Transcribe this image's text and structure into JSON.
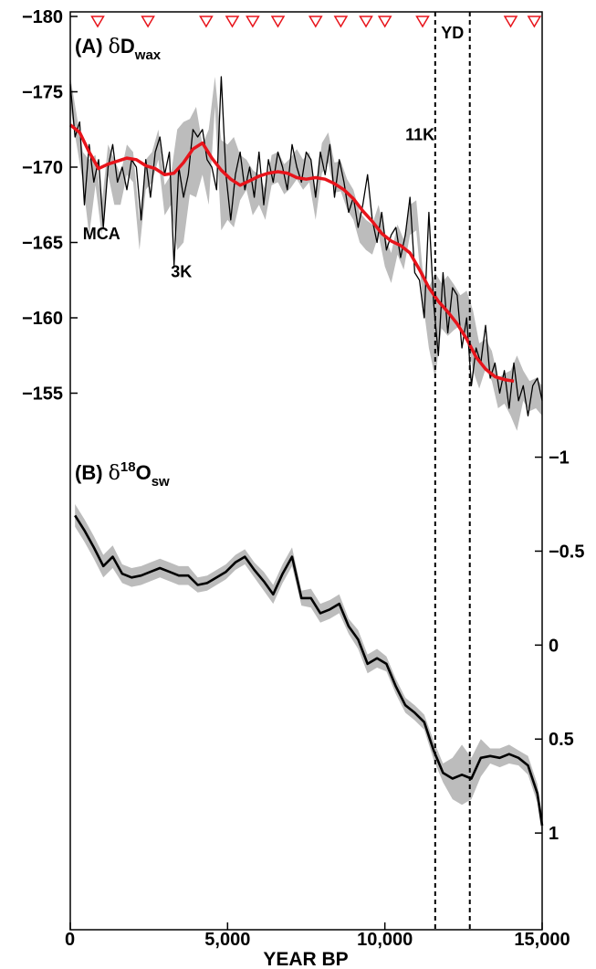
{
  "chart_data": {
    "type": "line",
    "xlabel": "YEAR BP",
    "xlim": [
      0,
      15000
    ],
    "x_ticks": [
      0,
      5000,
      10000,
      15000
    ],
    "x_tick_labels": [
      "0",
      "5,000",
      "10,000",
      "15,000"
    ],
    "grid": false,
    "marker_color": "#e8141b",
    "band_color": "#bcbcbc",
    "panels": [
      {
        "label_prefix": "(A) ",
        "symbol": "δ",
        "label_main": "D",
        "label_sub": "wax",
        "label_sup": "",
        "axis": "left",
        "ylim": [
          -180,
          -152
        ],
        "y_inverted": true,
        "y_ticks": [
          -180,
          -175,
          -170,
          -165,
          -160,
          -155
        ],
        "y_tick_labels": [
          "−180",
          "−175",
          "−170",
          "−165",
          "−160",
          "−155"
        ],
        "series": [
          {
            "kind": "band",
            "x": [
              0,
              200,
              400,
              600,
              800,
              1000,
              1200,
              1400,
              1600,
              1800,
              2000,
              2200,
              2400,
              2600,
              2800,
              3000,
              3200,
              3400,
              3600,
              3800,
              4000,
              4200,
              4400,
              4600,
              4800,
              5000,
              5200,
              5400,
              5600,
              5800,
              6000,
              6200,
              6400,
              6600,
              6800,
              7000,
              7200,
              7400,
              7600,
              7800,
              8000,
              8200,
              8400,
              8600,
              8800,
              9000,
              9200,
              9400,
              9600,
              9800,
              10000,
              10200,
              10400,
              10600,
              10800,
              11000,
              11200,
              11400,
              11600,
              11800,
              12000,
              12200,
              12400,
              12600,
              12800,
              13000,
              13200,
              13400,
              13600,
              13800,
              14000,
              14200,
              14400,
              14600,
              14800,
              15000
            ],
            "lower": [
              -176.0,
              -173.5,
              -171.0,
              -170.5,
              -170.8,
              -167.5,
              -171.5,
              -170.5,
              -169.5,
              -171.5,
              -171.0,
              -166.5,
              -170.5,
              -171.0,
              -172.5,
              -168.8,
              -169.5,
              -172.5,
              -173.0,
              -173.2,
              -174.0,
              -171.5,
              -172.5,
              -176.0,
              -171.8,
              -171.5,
              -172.0,
              -170.8,
              -170.5,
              -169.8,
              -169.5,
              -168.5,
              -170.8,
              -171.0,
              -170.2,
              -170.6,
              -171.2,
              -170.5,
              -171.0,
              -168.5,
              -171.6,
              -172.3,
              -170.3,
              -170.4,
              -169.2,
              -168.5,
              -167.0,
              -166.5,
              -166.2,
              -167.5,
              -165.4,
              -164.3,
              -166.2,
              -165.2,
              -167.5,
              -167.8,
              -163.2,
              -162.0,
              -163.0,
              -162.3,
              -162.8,
              -162.2,
              -161.5,
              -161.8,
              -160.5,
              -158.3,
              -158.6,
              -157.8,
              -156.0,
              -156.3,
              -156.5,
              -157.5,
              -156.5,
              -155.8,
              -156.0,
              -155.5
            ],
            "upper": [
              -174.0,
              -171.5,
              -169.0,
              -165.5,
              -168.8,
              -165.5,
              -169.5,
              -167.5,
              -167.5,
              -169.5,
              -169.0,
              -164.5,
              -168.5,
              -169.0,
              -170.5,
              -166.8,
              -167.5,
              -164.5,
              -165.0,
              -168.2,
              -168.0,
              -169.5,
              -167.5,
              -174.0,
              -165.8,
              -166.5,
              -166.0,
              -167.8,
              -168.5,
              -166.8,
              -167.5,
              -166.5,
              -168.8,
              -169.0,
              -168.2,
              -168.6,
              -169.2,
              -168.5,
              -169.0,
              -166.5,
              -169.6,
              -170.3,
              -168.3,
              -168.4,
              -167.2,
              -166.5,
              -165.0,
              -164.5,
              -164.2,
              -165.5,
              -163.4,
              -162.3,
              -164.2,
              -163.2,
              -165.5,
              -165.8,
              -161.2,
              -158.0,
              -156.0,
              -159.3,
              -158.8,
              -159.2,
              -159.5,
              -158.8,
              -156.5,
              -155.3,
              -156.6,
              -155.8,
              -154.0,
              -154.3,
              -153.5,
              -152.5,
              -154.5,
              -153.8,
              -154.0,
              -153.5
            ]
          },
          {
            "kind": "line",
            "name": "",
            "color": "#000000",
            "x": [
              0,
              150,
              300,
              450,
              600,
              750,
              900,
              1050,
              1200,
              1350,
              1500,
              1650,
              1800,
              1950,
              2100,
              2250,
              2400,
              2550,
              2700,
              2850,
              3000,
              3150,
              3300,
              3450,
              3600,
              3750,
              3900,
              4050,
              4200,
              4350,
              4500,
              4650,
              4800,
              4950,
              5100,
              5250,
              5400,
              5550,
              5700,
              5850,
              6000,
              6150,
              6300,
              6450,
              6600,
              6750,
              6900,
              7050,
              7200,
              7350,
              7500,
              7650,
              7800,
              7950,
              8100,
              8250,
              8400,
              8550,
              8700,
              8850,
              9000,
              9150,
              9300,
              9450,
              9600,
              9750,
              9900,
              10050,
              10200,
              10350,
              10500,
              10650,
              10800,
              10950,
              11100,
              11250,
              11400,
              11550,
              11700,
              11850,
              12000,
              12150,
              12300,
              12450,
              12600,
              12750,
              12900,
              13050,
              13200,
              13350,
              13500,
              13650,
              13800,
              13950,
              14100,
              14250,
              14400,
              14550,
              14700,
              14850,
              15000
            ],
            "y": [
              -175.5,
              -172.0,
              -173.0,
              -167.5,
              -171.5,
              -169.0,
              -170.5,
              -166.0,
              -170.0,
              -171.5,
              -169.0,
              -170.0,
              -168.5,
              -170.5,
              -170.0,
              -166.5,
              -170.5,
              -168.0,
              -171.0,
              -172.0,
              -169.5,
              -171.0,
              -163.5,
              -170.0,
              -168.0,
              -169.5,
              -172.5,
              -172.0,
              -172.5,
              -170.5,
              -170.0,
              -168.5,
              -176.0,
              -169.5,
              -166.5,
              -169.5,
              -171.0,
              -168.5,
              -170.0,
              -168.0,
              -171.0,
              -167.5,
              -170.5,
              -169.0,
              -171.0,
              -170.0,
              -168.5,
              -171.5,
              -170.0,
              -169.0,
              -171.0,
              -170.5,
              -168.0,
              -171.0,
              -169.5,
              -171.5,
              -168.0,
              -170.5,
              -169.0,
              -167.0,
              -168.0,
              -166.0,
              -167.5,
              -169.5,
              -166.5,
              -165.0,
              -167.0,
              -164.5,
              -165.5,
              -166.0,
              -164.0,
              -165.5,
              -168.0,
              -163.0,
              -162.5,
              -160.0,
              -167.0,
              -161.0,
              -157.5,
              -163.0,
              -159.0,
              -162.0,
              -161.5,
              -158.0,
              -160.0,
              -155.5,
              -158.0,
              -157.0,
              -159.5,
              -156.0,
              -157.0,
              -155.0,
              -156.5,
              -154.0,
              -157.0,
              -154.5,
              -155.5,
              -153.5,
              -155.5,
              -156.0,
              -154.5
            ]
          },
          {
            "kind": "line",
            "name": "",
            "color": "#e8141b",
            "x": [
              0,
              300,
              600,
              900,
              1200,
              1500,
              1800,
              2100,
              2400,
              2700,
              3000,
              3300,
              3600,
              3900,
              4200,
              4500,
              4800,
              5100,
              5400,
              5700,
              6000,
              6300,
              6600,
              6900,
              7200,
              7500,
              7800,
              8100,
              8400,
              8700,
              9000,
              9300,
              9600,
              9900,
              10200,
              10500,
              10800,
              11100,
              11400,
              11700,
              12000,
              12300,
              12600,
              12900,
              13200,
              13500,
              13800,
              14100
            ],
            "y": [
              -172.8,
              -172.3,
              -171.0,
              -169.9,
              -170.2,
              -170.4,
              -170.6,
              -170.5,
              -170.1,
              -169.9,
              -169.5,
              -169.6,
              -170.3,
              -171.2,
              -171.6,
              -170.6,
              -169.8,
              -169.2,
              -168.8,
              -169.1,
              -169.4,
              -169.6,
              -169.7,
              -169.6,
              -169.3,
              -169.2,
              -169.3,
              -169.2,
              -168.9,
              -168.5,
              -167.9,
              -167.1,
              -166.4,
              -165.6,
              -165.1,
              -164.8,
              -164.3,
              -163.2,
              -162.0,
              -161.1,
              -160.4,
              -159.6,
              -158.6,
              -157.4,
              -156.6,
              -156.1,
              -155.9,
              -155.8
            ]
          }
        ],
        "annotations": [
          {
            "text": "MCA",
            "x": 400,
            "y": -165.2
          },
          {
            "text": "3K",
            "x": 3200,
            "y": -162.7
          },
          {
            "text": "11K",
            "x": 10650,
            "y": -171.8
          }
        ],
        "markers_x": [
          870,
          2470,
          4320,
          5150,
          5800,
          6600,
          7800,
          8600,
          9400,
          10000,
          11200,
          14000,
          14750
        ]
      },
      {
        "label_prefix": "(B) ",
        "symbol": "δ",
        "label_main": "O",
        "label_sub": "sw",
        "label_sup": "18",
        "axis": "right",
        "ylim": [
          -1.1,
          1.15
        ],
        "y_inverted": true,
        "y_ticks": [
          -1,
          -0.5,
          0,
          0.5,
          1
        ],
        "y_tick_labels": [
          "−1",
          "−0.5",
          "0",
          "0.5",
          "1"
        ],
        "series": [
          {
            "kind": "band",
            "x": [
              150,
              450,
              750,
              1050,
              1350,
              1650,
              1950,
              2250,
              2550,
              2850,
              3150,
              3450,
              3750,
              4050,
              4350,
              4650,
              4950,
              5250,
              5550,
              5850,
              6150,
              6450,
              6750,
              7050,
              7350,
              7650,
              7950,
              8250,
              8550,
              8850,
              9150,
              9450,
              9750,
              10050,
              10350,
              10650,
              10950,
              11250,
              11550,
              11850,
              12150,
              12450,
              12750,
              13050,
              13350,
              13650,
              13950,
              14250,
              14550,
              14850,
              15000
            ],
            "lower": [
              -0.75,
              -0.67,
              -0.58,
              -0.48,
              -0.53,
              -0.43,
              -0.41,
              -0.42,
              -0.44,
              -0.46,
              -0.44,
              -0.42,
              -0.42,
              -0.36,
              -0.37,
              -0.4,
              -0.43,
              -0.48,
              -0.51,
              -0.44,
              -0.39,
              -0.32,
              -0.43,
              -0.52,
              -0.29,
              -0.3,
              -0.22,
              -0.24,
              -0.27,
              -0.14,
              -0.08,
              0.05,
              0.02,
              0.06,
              0.18,
              0.28,
              0.32,
              0.37,
              0.51,
              0.63,
              0.6,
              0.53,
              0.6,
              0.5,
              0.55,
              0.55,
              0.53,
              0.56,
              0.59,
              0.74,
              0.91
            ],
            "upper": [
              -0.63,
              -0.55,
              -0.46,
              -0.36,
              -0.41,
              -0.33,
              -0.31,
              -0.32,
              -0.34,
              -0.36,
              -0.34,
              -0.32,
              -0.32,
              -0.28,
              -0.29,
              -0.32,
              -0.35,
              -0.4,
              -0.43,
              -0.36,
              -0.29,
              -0.22,
              -0.33,
              -0.42,
              -0.21,
              -0.2,
              -0.12,
              -0.14,
              -0.17,
              -0.06,
              0.02,
              0.15,
              0.12,
              0.14,
              0.26,
              0.36,
              0.4,
              0.45,
              0.61,
              0.73,
              0.82,
              0.85,
              0.82,
              0.7,
              0.63,
              0.65,
              0.63,
              0.64,
              0.69,
              0.84,
              1.01
            ]
          },
          {
            "kind": "line",
            "name": "",
            "color": "#000000",
            "x": [
              150,
              450,
              750,
              1050,
              1350,
              1650,
              1950,
              2250,
              2550,
              2850,
              3150,
              3450,
              3750,
              4050,
              4350,
              4650,
              4950,
              5250,
              5550,
              5850,
              6150,
              6450,
              6750,
              7050,
              7350,
              7650,
              7950,
              8250,
              8550,
              8850,
              9150,
              9450,
              9750,
              10050,
              10350,
              10650,
              10950,
              11250,
              11550,
              11850,
              12150,
              12450,
              12750,
              13050,
              13350,
              13650,
              13950,
              14250,
              14550,
              14850,
              15000
            ],
            "y": [
              -0.69,
              -0.61,
              -0.52,
              -0.42,
              -0.47,
              -0.38,
              -0.36,
              -0.37,
              -0.39,
              -0.41,
              -0.39,
              -0.37,
              -0.37,
              -0.32,
              -0.33,
              -0.36,
              -0.39,
              -0.44,
              -0.47,
              -0.4,
              -0.34,
              -0.27,
              -0.38,
              -0.47,
              -0.25,
              -0.25,
              -0.17,
              -0.19,
              -0.22,
              -0.1,
              -0.03,
              0.1,
              0.07,
              0.1,
              0.22,
              0.32,
              0.36,
              0.41,
              0.56,
              0.68,
              0.71,
              0.69,
              0.71,
              0.6,
              0.59,
              0.6,
              0.58,
              0.6,
              0.64,
              0.79,
              0.96
            ]
          }
        ]
      }
    ],
    "event_lines": [
      {
        "x": 11600,
        "label": ""
      },
      {
        "x": 12700,
        "label": "YD"
      }
    ]
  }
}
